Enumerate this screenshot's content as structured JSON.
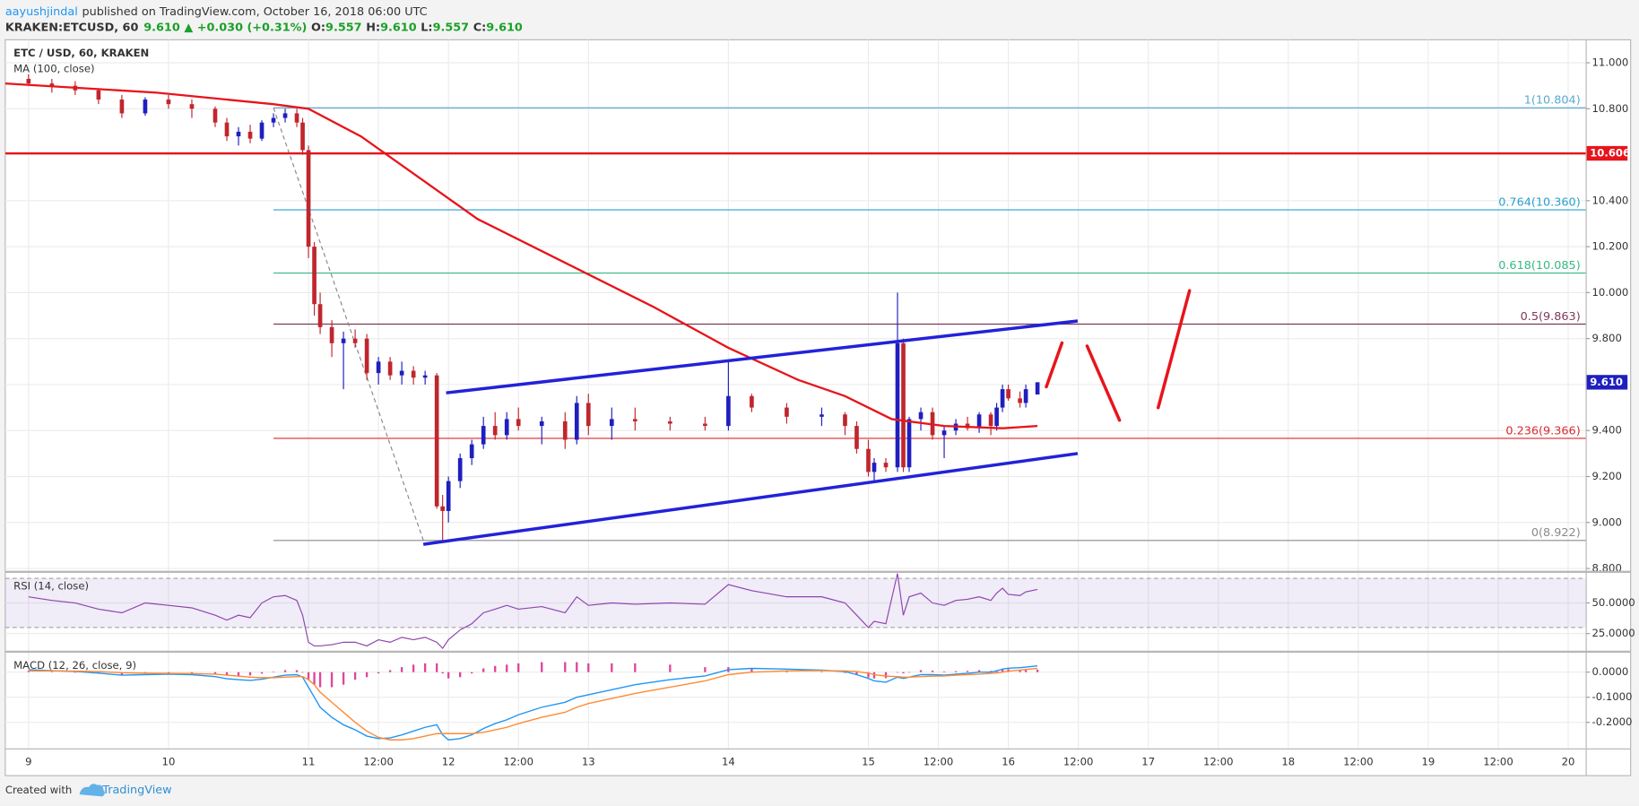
{
  "header": {
    "author": "aayushjindal",
    "published": "published on TradingView.com, October 16, 2018 06:00 UTC",
    "symbol": "KRAKEN:ETCUSD, 60",
    "price": "9.610",
    "change": "▲ +0.030 (+0.31%)",
    "ohlc": [
      {
        "label": "O:",
        "value": "9.557"
      },
      {
        "label": "H:",
        "value": "9.610"
      },
      {
        "label": "L:",
        "value": "9.557"
      },
      {
        "label": "C:",
        "value": "9.610"
      }
    ]
  },
  "chart_data": {
    "type": "candlestick",
    "title": "ETC / USD, 60, KRAKEN",
    "up_color": "#1f1fbf",
    "down_color": "#c0262d",
    "xlim": [
      -4,
      267
    ],
    "xticks": [
      {
        "value": 0,
        "label": "9"
      },
      {
        "value": 24,
        "label": "10"
      },
      {
        "value": 48,
        "label": "11"
      },
      {
        "value": 60,
        "label": "12:00"
      },
      {
        "value": 72,
        "label": "12"
      },
      {
        "value": 84,
        "label": "12:00"
      },
      {
        "value": 96,
        "label": "13"
      },
      {
        "value": 120,
        "label": "14"
      },
      {
        "value": 144,
        "label": "15"
      },
      {
        "value": 156,
        "label": "12:00"
      },
      {
        "value": 168,
        "label": "16"
      },
      {
        "value": 180,
        "label": "12:00"
      },
      {
        "value": 192,
        "label": "17"
      },
      {
        "value": 204,
        "label": "12:00"
      },
      {
        "value": 216,
        "label": "18"
      },
      {
        "value": 228,
        "label": "12:00"
      },
      {
        "value": 240,
        "label": "19"
      },
      {
        "value": 252,
        "label": "12:00"
      },
      {
        "value": 264,
        "label": "20"
      }
    ],
    "ylim": [
      8.79,
      11.1
    ],
    "yticks": [
      {
        "value": 11,
        "label": "11.000"
      },
      {
        "value": 10.8,
        "label": "10.800"
      },
      {
        "value": 10.6,
        "label": "10.600"
      },
      {
        "value": 10.4,
        "label": "10.400"
      },
      {
        "value": 10.2,
        "label": "10.200"
      },
      {
        "value": 10,
        "label": "10.000"
      },
      {
        "value": 9.8,
        "label": "9.800"
      },
      {
        "value": 9.6,
        "label": "9.600"
      },
      {
        "value": 9.4,
        "label": "9.400"
      },
      {
        "value": 9.2,
        "label": "9.200"
      },
      {
        "value": 9,
        "label": "9.000"
      },
      {
        "value": 8.8,
        "label": "8.800"
      }
    ],
    "grid": true,
    "candles": [
      {
        "x": 0,
        "open": 10.93,
        "high": 10.95,
        "low": 10.9,
        "close": 10.91
      },
      {
        "x": 4,
        "open": 10.91,
        "high": 10.93,
        "low": 10.87,
        "close": 10.9
      },
      {
        "x": 8,
        "open": 10.9,
        "high": 10.92,
        "low": 10.86,
        "close": 10.88
      },
      {
        "x": 12,
        "open": 10.88,
        "high": 10.89,
        "low": 10.82,
        "close": 10.84
      },
      {
        "x": 16,
        "open": 10.84,
        "high": 10.86,
        "low": 10.76,
        "close": 10.78
      },
      {
        "x": 20,
        "open": 10.78,
        "high": 10.85,
        "low": 10.77,
        "close": 10.84
      },
      {
        "x": 24,
        "open": 10.84,
        "high": 10.86,
        "low": 10.8,
        "close": 10.82
      },
      {
        "x": 28,
        "open": 10.82,
        "high": 10.84,
        "low": 10.76,
        "close": 10.8
      },
      {
        "x": 32,
        "open": 10.8,
        "high": 10.81,
        "low": 10.72,
        "close": 10.74
      },
      {
        "x": 34,
        "open": 10.74,
        "high": 10.76,
        "low": 10.66,
        "close": 10.68
      },
      {
        "x": 36,
        "open": 10.68,
        "high": 10.72,
        "low": 10.64,
        "close": 10.7
      },
      {
        "x": 38,
        "open": 10.7,
        "high": 10.73,
        "low": 10.65,
        "close": 10.67
      },
      {
        "x": 40,
        "open": 10.67,
        "high": 10.75,
        "low": 10.66,
        "close": 10.74
      },
      {
        "x": 42,
        "open": 10.74,
        "high": 10.78,
        "low": 10.72,
        "close": 10.76
      },
      {
        "x": 44,
        "open": 10.76,
        "high": 10.8,
        "low": 10.74,
        "close": 10.78
      },
      {
        "x": 46,
        "open": 10.78,
        "high": 10.8,
        "low": 10.72,
        "close": 10.74
      },
      {
        "x": 47,
        "open": 10.74,
        "high": 10.76,
        "low": 10.6,
        "close": 10.62
      },
      {
        "x": 48,
        "open": 10.62,
        "high": 10.64,
        "low": 10.15,
        "close": 10.2
      },
      {
        "x": 49,
        "open": 10.2,
        "high": 10.22,
        "low": 9.9,
        "close": 9.95
      },
      {
        "x": 50,
        "open": 9.95,
        "high": 10.0,
        "low": 9.82,
        "close": 9.85
      },
      {
        "x": 52,
        "open": 9.85,
        "high": 9.88,
        "low": 9.72,
        "close": 9.78
      },
      {
        "x": 54,
        "open": 9.78,
        "high": 9.83,
        "low": 9.58,
        "close": 9.8
      },
      {
        "x": 56,
        "open": 9.8,
        "high": 9.84,
        "low": 9.76,
        "close": 9.78
      },
      {
        "x": 58,
        "open": 9.8,
        "high": 9.82,
        "low": 9.62,
        "close": 9.65
      },
      {
        "x": 60,
        "open": 9.65,
        "high": 9.72,
        "low": 9.6,
        "close": 9.7
      },
      {
        "x": 62,
        "open": 9.7,
        "high": 9.72,
        "low": 9.62,
        "close": 9.64
      },
      {
        "x": 64,
        "open": 9.64,
        "high": 9.7,
        "low": 9.6,
        "close": 9.66
      },
      {
        "x": 66,
        "open": 9.66,
        "high": 9.68,
        "low": 9.6,
        "close": 9.63
      },
      {
        "x": 68,
        "open": 9.63,
        "high": 9.66,
        "low": 9.6,
        "close": 9.64
      },
      {
        "x": 70,
        "open": 9.64,
        "high": 9.65,
        "low": 9.06,
        "close": 9.07
      },
      {
        "x": 71,
        "open": 9.07,
        "high": 9.12,
        "low": 8.922,
        "close": 9.05
      },
      {
        "x": 72,
        "open": 9.05,
        "high": 9.2,
        "low": 9.0,
        "close": 9.18
      },
      {
        "x": 74,
        "open": 9.18,
        "high": 9.3,
        "low": 9.15,
        "close": 9.28
      },
      {
        "x": 76,
        "open": 9.28,
        "high": 9.36,
        "low": 9.25,
        "close": 9.34
      },
      {
        "x": 78,
        "open": 9.34,
        "high": 9.46,
        "low": 9.32,
        "close": 9.42
      },
      {
        "x": 80,
        "open": 9.42,
        "high": 9.48,
        "low": 9.36,
        "close": 9.38
      },
      {
        "x": 82,
        "open": 9.38,
        "high": 9.48,
        "low": 9.36,
        "close": 9.45
      },
      {
        "x": 84,
        "open": 9.45,
        "high": 9.5,
        "low": 9.4,
        "close": 9.42
      },
      {
        "x": 88,
        "open": 9.42,
        "high": 9.46,
        "low": 9.34,
        "close": 9.44
      },
      {
        "x": 92,
        "open": 9.44,
        "high": 9.48,
        "low": 9.32,
        "close": 9.36
      },
      {
        "x": 94,
        "open": 9.36,
        "high": 9.55,
        "low": 9.34,
        "close": 9.52
      },
      {
        "x": 96,
        "open": 9.52,
        "high": 9.56,
        "low": 9.38,
        "close": 9.42
      },
      {
        "x": 100,
        "open": 9.42,
        "high": 9.5,
        "low": 9.36,
        "close": 9.45
      },
      {
        "x": 104,
        "open": 9.45,
        "high": 9.5,
        "low": 9.4,
        "close": 9.44
      },
      {
        "x": 110,
        "open": 9.44,
        "high": 9.46,
        "low": 9.4,
        "close": 9.43
      },
      {
        "x": 116,
        "open": 9.43,
        "high": 9.46,
        "low": 9.4,
        "close": 9.42
      },
      {
        "x": 120,
        "open": 9.42,
        "high": 9.7,
        "low": 9.4,
        "close": 9.55
      },
      {
        "x": 124,
        "open": 9.55,
        "high": 9.56,
        "low": 9.48,
        "close": 9.5
      },
      {
        "x": 130,
        "open": 9.5,
        "high": 9.52,
        "low": 9.43,
        "close": 9.46
      },
      {
        "x": 136,
        "open": 9.46,
        "high": 9.5,
        "low": 9.42,
        "close": 9.47
      },
      {
        "x": 140,
        "open": 9.47,
        "high": 9.48,
        "low": 9.38,
        "close": 9.42
      },
      {
        "x": 142,
        "open": 9.42,
        "high": 9.44,
        "low": 9.3,
        "close": 9.32
      },
      {
        "x": 144,
        "open": 9.32,
        "high": 9.36,
        "low": 9.2,
        "close": 9.22
      },
      {
        "x": 145,
        "open": 9.22,
        "high": 9.28,
        "low": 9.18,
        "close": 9.26
      },
      {
        "x": 147,
        "open": 9.26,
        "high": 9.28,
        "low": 9.22,
        "close": 9.24
      },
      {
        "x": 149,
        "open": 9.24,
        "high": 10.0,
        "low": 9.22,
        "close": 9.78
      },
      {
        "x": 150,
        "open": 9.78,
        "high": 9.8,
        "low": 9.22,
        "close": 9.24
      },
      {
        "x": 151,
        "open": 9.24,
        "high": 9.46,
        "low": 9.22,
        "close": 9.45
      },
      {
        "x": 153,
        "open": 9.45,
        "high": 9.5,
        "low": 9.4,
        "close": 9.48
      },
      {
        "x": 155,
        "open": 9.48,
        "high": 9.5,
        "low": 9.36,
        "close": 9.38
      },
      {
        "x": 157,
        "open": 9.38,
        "high": 9.42,
        "low": 9.28,
        "close": 9.4
      },
      {
        "x": 159,
        "open": 9.4,
        "high": 9.45,
        "low": 9.38,
        "close": 9.43
      },
      {
        "x": 161,
        "open": 9.43,
        "high": 9.46,
        "low": 9.4,
        "close": 9.41
      },
      {
        "x": 163,
        "open": 9.41,
        "high": 9.48,
        "low": 9.39,
        "close": 9.47
      },
      {
        "x": 165,
        "open": 9.47,
        "high": 9.48,
        "low": 9.38,
        "close": 9.42
      },
      {
        "x": 166,
        "open": 9.42,
        "high": 9.52,
        "low": 9.4,
        "close": 9.5
      },
      {
        "x": 167,
        "open": 9.5,
        "high": 9.6,
        "low": 9.48,
        "close": 9.58
      },
      {
        "x": 168,
        "open": 9.58,
        "high": 9.6,
        "low": 9.53,
        "close": 9.54
      },
      {
        "x": 170,
        "open": 9.54,
        "high": 9.57,
        "low": 9.5,
        "close": 9.52
      },
      {
        "x": 171,
        "open": 9.52,
        "high": 9.6,
        "low": 9.5,
        "close": 9.58
      },
      {
        "x": 173,
        "open": 9.557,
        "high": 9.61,
        "low": 9.557,
        "close": 9.61
      }
    ],
    "ma": {
      "name": "MA (100, close)",
      "color": "#e8141b",
      "x": [
        -4,
        22,
        42,
        48,
        57,
        67,
        77,
        92,
        107,
        120,
        132,
        140,
        148,
        157,
        167,
        173
      ],
      "values": [
        10.91,
        10.87,
        10.82,
        10.8,
        10.68,
        10.5,
        10.32,
        10.13,
        9.94,
        9.76,
        9.62,
        9.55,
        9.45,
        9.42,
        9.41,
        9.42
      ]
    },
    "resistance": {
      "value": 10.606,
      "label": "10.606",
      "color": "#e8141b"
    },
    "last_price": {
      "value": 9.61,
      "label": "9.610",
      "color": "#1f1fbf"
    },
    "fib": {
      "x": [
        42,
        67.7
      ],
      "levels": [
        {
          "value": 10.804,
          "label": "1(10.804)",
          "color": "#5aa9d6"
        },
        {
          "value": 10.36,
          "label": "0.764(10.360)",
          "color": "#2a9fd0"
        },
        {
          "value": 10.085,
          "label": "0.618(10.085)",
          "color": "#35b982"
        },
        {
          "value": 9.863,
          "label": "0.5(9.863)",
          "color": "#7b3a58"
        },
        {
          "value": 9.366,
          "label": "0.236(9.366)",
          "color": "#d9282f"
        },
        {
          "value": 8.922,
          "label": "0(8.922)",
          "color": "#8a8a8a"
        }
      ]
    },
    "trend_lines": [
      {
        "x": [
          71.6,
          179.9
        ],
        "values": [
          9.564,
          9.877
        ],
        "color": "#2222d8"
      },
      {
        "x": [
          67.7,
          179.9
        ],
        "values": [
          8.905,
          9.3
        ],
        "color": "#2222d8"
      }
    ],
    "rsi": {
      "name": "RSI (14, close)",
      "color": "#8e44ad",
      "ylim": [
        11.5,
        74.5
      ],
      "levels": [
        30,
        70
      ],
      "yticks": [
        {
          "value": 50,
          "label": "50.0000"
        },
        {
          "value": 25,
          "label": "25.0000"
        }
      ],
      "values": [
        55,
        52,
        50,
        45,
        42,
        50,
        48,
        46,
        40,
        36,
        40,
        38,
        50,
        55,
        56,
        52,
        40,
        18,
        15,
        15,
        16,
        18,
        18,
        15,
        20,
        18,
        22,
        20,
        22,
        18,
        13,
        20,
        28,
        33,
        42,
        45,
        48,
        45,
        47,
        42,
        55,
        48,
        50,
        49,
        50,
        49,
        65,
        60,
        55,
        55,
        50,
        40,
        30,
        35,
        33,
        74,
        40,
        55,
        58,
        50,
        48,
        52,
        53,
        55,
        52,
        58,
        62,
        57,
        56,
        59,
        61
      ]
    },
    "macd": {
      "name": "MACD (12, 26, close, 9)",
      "ylim": [
        -0.304,
        0.075
      ],
      "yticks": [
        {
          "value": 0,
          "label": "0.0000"
        },
        {
          "value": -0.1,
          "label": "-0.1000"
        },
        {
          "value": -0.2,
          "label": "-0.2000"
        }
      ],
      "series": [
        {
          "color": "#2196f3",
          "values": [
            0.01,
            0.006,
            0.003,
            -0.004,
            -0.012,
            -0.01,
            -0.008,
            -0.01,
            -0.018,
            -0.026,
            -0.03,
            -0.033,
            -0.028,
            -0.02,
            -0.012,
            -0.01,
            -0.02,
            -0.06,
            -0.1,
            -0.14,
            -0.18,
            -0.21,
            -0.23,
            -0.255,
            -0.265,
            -0.262,
            -0.25,
            -0.235,
            -0.22,
            -0.21,
            -0.25,
            -0.27,
            -0.265,
            -0.25,
            -0.225,
            -0.205,
            -0.19,
            -0.17,
            -0.14,
            -0.12,
            -0.1,
            -0.09,
            -0.07,
            -0.05,
            -0.03,
            -0.015,
            0.01,
            0.015,
            0.012,
            0.008,
            0.002,
            -0.01,
            -0.025,
            -0.035,
            -0.04,
            -0.02,
            -0.025,
            -0.02,
            -0.01,
            -0.01,
            -0.012,
            -0.008,
            -0.005,
            0,
            0,
            0.005,
            0.012,
            0.016,
            0.018,
            0.02,
            0.025
          ]
        },
        {
          "color": "#ff8a35",
          "values": [
            0.005,
            0.005,
            0.004,
            0.002,
            -0.002,
            -0.004,
            -0.005,
            -0.006,
            -0.008,
            -0.012,
            -0.016,
            -0.02,
            -0.022,
            -0.022,
            -0.02,
            -0.018,
            -0.018,
            -0.03,
            -0.05,
            -0.08,
            -0.12,
            -0.16,
            -0.2,
            -0.235,
            -0.26,
            -0.27,
            -0.27,
            -0.265,
            -0.255,
            -0.245,
            -0.245,
            -0.245,
            -0.245,
            -0.245,
            -0.24,
            -0.23,
            -0.22,
            -0.205,
            -0.18,
            -0.16,
            -0.14,
            -0.125,
            -0.105,
            -0.085,
            -0.06,
            -0.035,
            -0.01,
            0,
            0.005,
            0.006,
            0.005,
            0.002,
            -0.004,
            -0.01,
            -0.016,
            -0.018,
            -0.02,
            -0.02,
            -0.018,
            -0.016,
            -0.015,
            -0.012,
            -0.01,
            -0.008,
            -0.005,
            -0.003,
            0,
            0.004,
            0.008,
            0.011,
            0.015
          ]
        }
      ],
      "histogram": {
        "color": "#e0459b",
        "values": [
          0.005,
          0.001,
          -0.001,
          -0.006,
          -0.01,
          -0.006,
          -0.003,
          -0.004,
          -0.01,
          -0.014,
          -0.014,
          -0.013,
          -0.006,
          0.002,
          0.008,
          0.008,
          -0.002,
          -0.03,
          -0.05,
          -0.06,
          -0.06,
          -0.05,
          -0.03,
          -0.02,
          -0.005,
          0.008,
          0.02,
          0.03,
          0.035,
          0.035,
          -0.005,
          -0.025,
          -0.02,
          -0.005,
          0.015,
          0.025,
          0.03,
          0.035,
          0.04,
          0.04,
          0.04,
          0.035,
          0.035,
          0.035,
          0.03,
          0.02,
          0.02,
          0.015,
          0.007,
          0.002,
          -0.003,
          -0.012,
          -0.021,
          -0.025,
          -0.024,
          -0.002,
          -0.005,
          0,
          0.008,
          0.006,
          0.003,
          0.004,
          0.005,
          0.008,
          0.005,
          0.008,
          0.012,
          0.012,
          0.01,
          0.009,
          0.01
        ]
      }
    }
  },
  "footer": {
    "created": "Created with",
    "brand": "TradingView"
  }
}
